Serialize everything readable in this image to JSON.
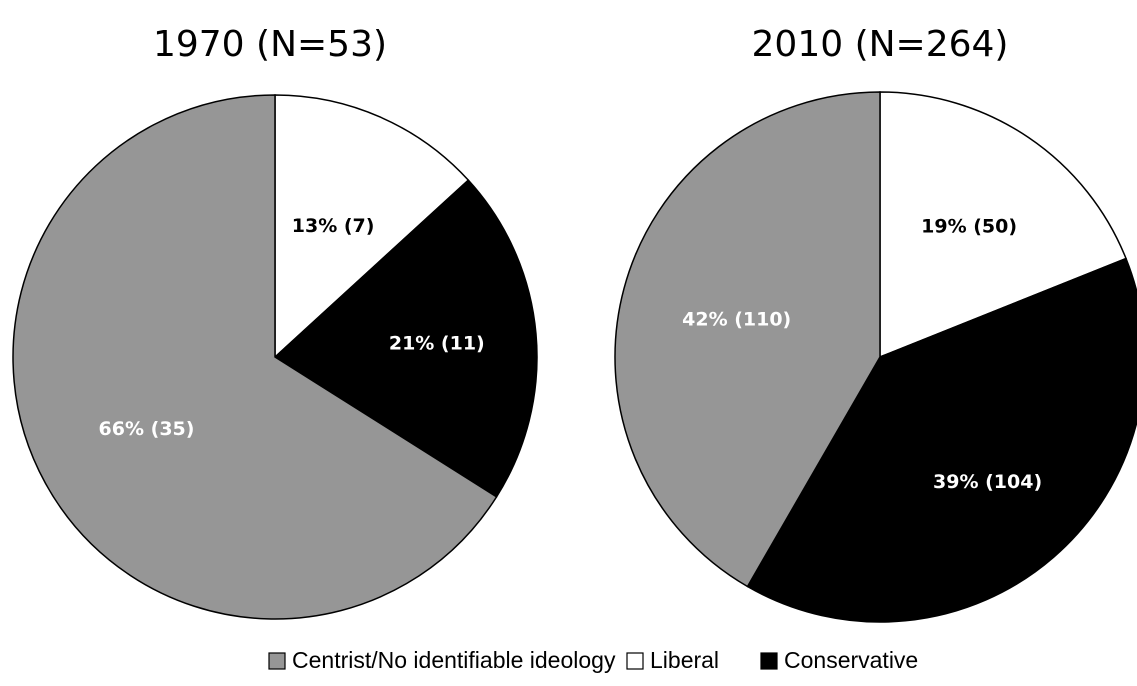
{
  "chart_data": [
    {
      "type": "pie",
      "title": "1970 (N=53)",
      "slices": [
        {
          "category": "Liberal",
          "percent": 13,
          "count": 7,
          "label": "13% (7)"
        },
        {
          "category": "Conservative",
          "percent": 21,
          "count": 11,
          "label": "21% (11)"
        },
        {
          "category": "Centrist/No identifiable ideology",
          "percent": 66,
          "count": 35,
          "label": "66% (35)"
        }
      ]
    },
    {
      "type": "pie",
      "title": "2010 (N=264)",
      "slices": [
        {
          "category": "Liberal",
          "percent": 19,
          "count": 50,
          "label": "19% (50)"
        },
        {
          "category": "Conservative",
          "percent": 39,
          "count": 104,
          "label": "39% (104)"
        },
        {
          "category": "Centrist/No identifiable ideology",
          "percent": 42,
          "count": 110,
          "label": "42% (110)"
        }
      ]
    }
  ],
  "legend": [
    {
      "category": "Centrist/No identifiable ideology",
      "label": "Centrist/No identifiable ideology"
    },
    {
      "category": "Liberal",
      "label": "Liberal"
    },
    {
      "category": "Conservative",
      "label": "Conservative"
    }
  ],
  "colors": {
    "Centrist/No identifiable ideology": "#969696",
    "Liberal": "#ffffff",
    "Conservative": "#000000"
  },
  "label_colors": {
    "Centrist/No identifiable ideology": "#ffffff",
    "Liberal": "#000000",
    "Conservative": "#ffffff"
  },
  "legend_position": "bottom"
}
